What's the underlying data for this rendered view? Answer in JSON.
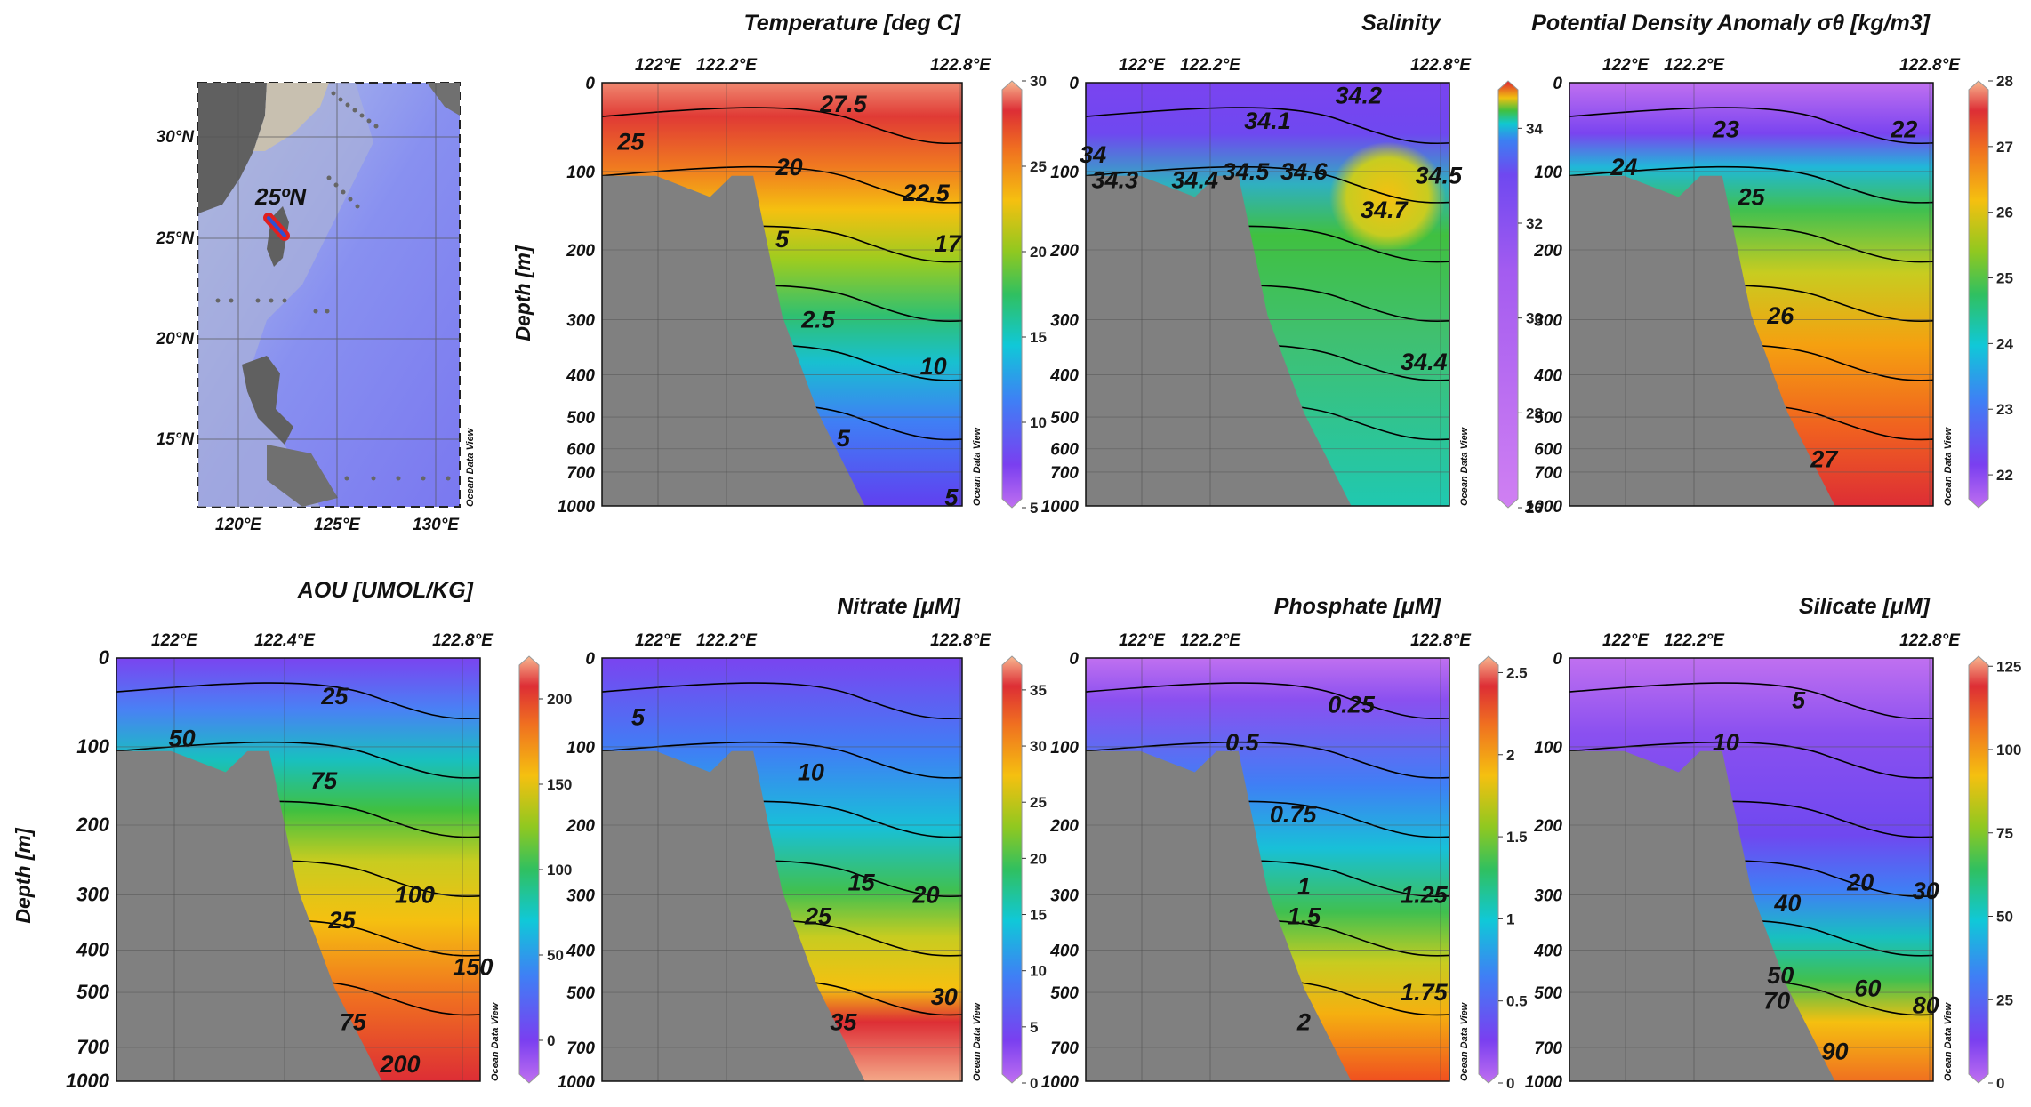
{
  "watermark": "Ocean Data View",
  "depth_label": "Depth [m]",
  "depth_ticks": [
    "0",
    "100",
    "200",
    "300",
    "400",
    "500",
    "600",
    "700",
    "1000"
  ],
  "depth_ticks_bottom": [
    "0",
    "100",
    "200",
    "300",
    "400",
    "500",
    "700",
    "1000"
  ],
  "map": {
    "lat_ticks": [
      "30°N",
      "25°N",
      "20°N",
      "15°N"
    ],
    "lon_ticks": [
      "120°E",
      "125°E",
      "130°E"
    ],
    "section_label": "25ºN"
  },
  "colors": {
    "land": "#808080",
    "contour": "#000000",
    "transect": "#e02020",
    "transect_core": "#3050d0"
  },
  "chart_data": [
    {
      "type": "heatmap",
      "title": "Temperature [deg C]",
      "x_ticks": [
        "122°E",
        "122.2°E",
        "122.8°E"
      ],
      "colorbar_ticks": [
        "30",
        "25",
        "20",
        "15",
        "10",
        "5"
      ],
      "contour_labels": [
        "27.5",
        "25",
        "20",
        "22.5",
        "17",
        "5",
        "2.5",
        "10",
        "5",
        "5"
      ],
      "colormap": "odv",
      "range": [
        5,
        30
      ]
    },
    {
      "type": "heatmap",
      "title": "Salinity",
      "x_ticks": [
        "122°E",
        "122.2°E",
        "122.8°E"
      ],
      "colorbar_ticks": [
        "34",
        "32",
        "30",
        "28",
        "26"
      ],
      "contour_labels": [
        "34.2",
        "34.1",
        "34",
        "34.3",
        "34.4",
        "34.5",
        "34.6",
        "34.7",
        "34.4",
        "34.5"
      ],
      "colormap": "salinity",
      "range": [
        26,
        35
      ]
    },
    {
      "type": "heatmap",
      "title": "Potential Density Anomaly σθ [kg/m3]",
      "x_ticks": [
        "122°E",
        "122.2°E",
        "122.8°E"
      ],
      "colorbar_ticks": [
        "28",
        "27",
        "26",
        "25",
        "24",
        "23",
        "22"
      ],
      "contour_labels": [
        "23",
        "22",
        "24",
        "25",
        "26",
        "27"
      ],
      "colormap": "odv",
      "range": [
        21.5,
        28
      ]
    },
    {
      "type": "heatmap",
      "title": "AOU [UMOL/KG]",
      "x_ticks": [
        "122°E",
        "122.4°E",
        "122.8°E"
      ],
      "colorbar_ticks": [
        "200",
        "150",
        "100",
        "50",
        "0"
      ],
      "contour_labels": [
        "25",
        "50",
        "75",
        "100",
        "25",
        "150",
        "75",
        "200"
      ],
      "colormap": "odv",
      "range": [
        -25,
        225
      ]
    },
    {
      "type": "heatmap",
      "title": "Nitrate [μM]",
      "x_ticks": [
        "122°E",
        "122.2°E",
        "122.8°E"
      ],
      "colorbar_ticks": [
        "35",
        "30",
        "25",
        "20",
        "15",
        "10",
        "5",
        "0"
      ],
      "contour_labels": [
        "5",
        "10",
        "15",
        "20",
        "25",
        "30",
        "35"
      ],
      "colormap": "odv",
      "range": [
        0,
        38
      ]
    },
    {
      "type": "heatmap",
      "title": "Phosphate [μM]",
      "x_ticks": [
        "122°E",
        "122.2°E",
        "122.8°E"
      ],
      "colorbar_ticks": [
        "2.5",
        "2",
        "1.5",
        "1",
        "0.5",
        "0"
      ],
      "contour_labels": [
        "0.25",
        "0.5",
        "0.75",
        "1",
        "1.25",
        "1.5",
        "1.75",
        "2"
      ],
      "colormap": "odv",
      "range": [
        0,
        2.6
      ]
    },
    {
      "type": "heatmap",
      "title": "Silicate [μM]",
      "x_ticks": [
        "122°E",
        "122.2°E",
        "122.8°E"
      ],
      "colorbar_ticks": [
        "125",
        "100",
        "75",
        "50",
        "25",
        "0"
      ],
      "contour_labels": [
        "5",
        "10",
        "20",
        "30",
        "40",
        "50",
        "60",
        "70",
        "80",
        "90"
      ],
      "colormap": "odv",
      "range": [
        0,
        128
      ]
    }
  ]
}
